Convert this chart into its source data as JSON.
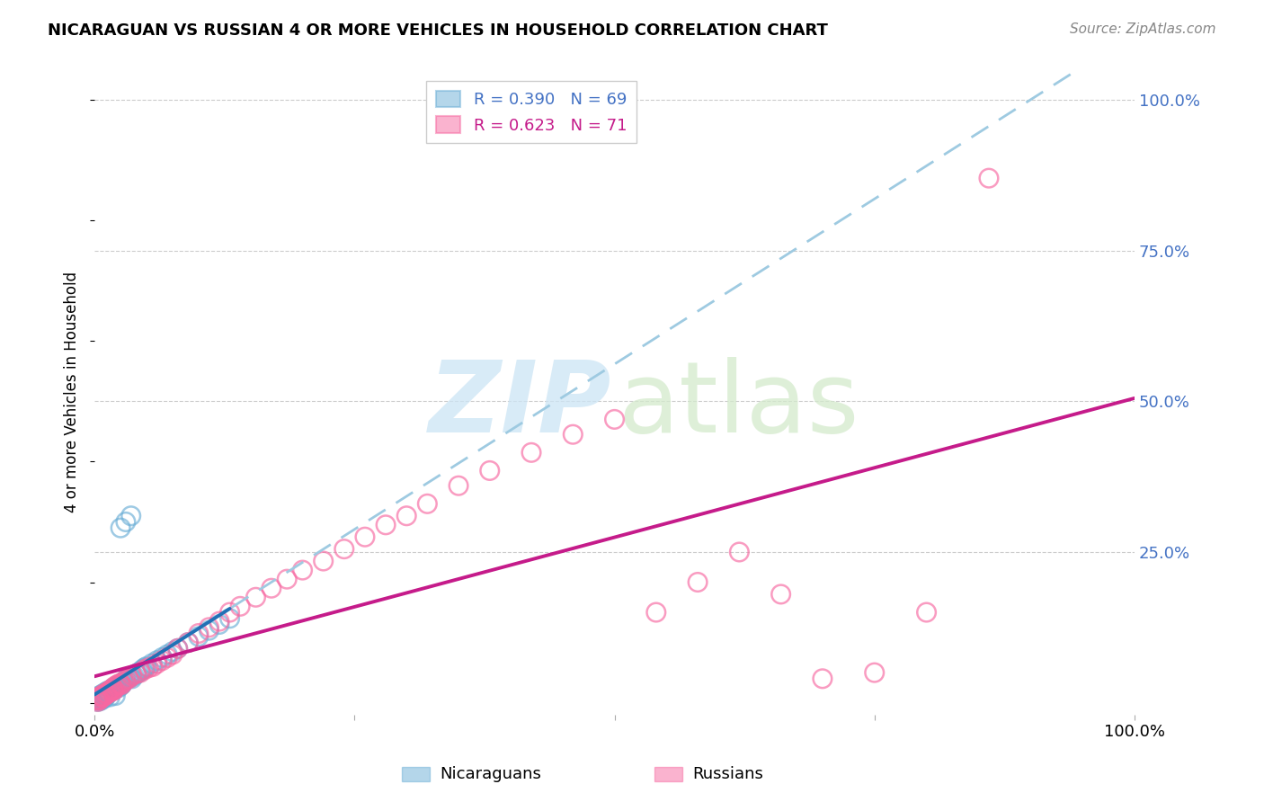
{
  "title": "NICARAGUAN VS RUSSIAN 4 OR MORE VEHICLES IN HOUSEHOLD CORRELATION CHART",
  "source": "Source: ZipAtlas.com",
  "ylabel": "4 or more Vehicles in Household",
  "ytick_labels": [
    "100.0%",
    "75.0%",
    "50.0%",
    "25.0%"
  ],
  "ytick_positions": [
    1.0,
    0.75,
    0.5,
    0.25
  ],
  "nicaraguan_color": "#6baed6",
  "russian_color": "#f768a1",
  "nicaraguan_line_color": "#2171b5",
  "russian_line_color": "#c51b8a",
  "nicaraguan_dash_color": "#9ecae1",
  "background_color": "#ffffff",
  "xlim": [
    0.0,
    1.0
  ],
  "ylim": [
    -0.02,
    1.05
  ],
  "nicaraguan_R": 0.39,
  "nicaraguan_N": 69,
  "russian_R": 0.623,
  "russian_N": 71,
  "nicaraguan_x": [
    0.002,
    0.003,
    0.003,
    0.004,
    0.004,
    0.005,
    0.005,
    0.006,
    0.006,
    0.007,
    0.007,
    0.008,
    0.008,
    0.009,
    0.009,
    0.01,
    0.01,
    0.011,
    0.011,
    0.012,
    0.012,
    0.013,
    0.013,
    0.014,
    0.015,
    0.016,
    0.017,
    0.018,
    0.019,
    0.02,
    0.021,
    0.022,
    0.023,
    0.024,
    0.025,
    0.026,
    0.027,
    0.028,
    0.03,
    0.032,
    0.034,
    0.036,
    0.038,
    0.04,
    0.042,
    0.044,
    0.046,
    0.048,
    0.05,
    0.055,
    0.06,
    0.065,
    0.07,
    0.075,
    0.08,
    0.09,
    0.1,
    0.11,
    0.12,
    0.13,
    0.003,
    0.005,
    0.007,
    0.01,
    0.015,
    0.02,
    0.025,
    0.03,
    0.035
  ],
  "nicaraguan_y": [
    0.005,
    0.005,
    0.008,
    0.005,
    0.01,
    0.008,
    0.012,
    0.005,
    0.01,
    0.008,
    0.012,
    0.008,
    0.015,
    0.01,
    0.015,
    0.01,
    0.015,
    0.012,
    0.018,
    0.015,
    0.018,
    0.015,
    0.02,
    0.018,
    0.02,
    0.022,
    0.02,
    0.025,
    0.022,
    0.025,
    0.025,
    0.028,
    0.025,
    0.03,
    0.028,
    0.03,
    0.032,
    0.035,
    0.038,
    0.04,
    0.042,
    0.04,
    0.045,
    0.048,
    0.05,
    0.052,
    0.055,
    0.058,
    0.06,
    0.065,
    0.07,
    0.075,
    0.08,
    0.085,
    0.09,
    0.1,
    0.11,
    0.12,
    0.13,
    0.14,
    0.002,
    0.003,
    0.005,
    0.008,
    0.01,
    0.012,
    0.29,
    0.3,
    0.31
  ],
  "russian_x": [
    0.002,
    0.003,
    0.004,
    0.005,
    0.006,
    0.007,
    0.008,
    0.009,
    0.01,
    0.011,
    0.012,
    0.013,
    0.014,
    0.015,
    0.016,
    0.017,
    0.018,
    0.019,
    0.02,
    0.022,
    0.024,
    0.026,
    0.028,
    0.03,
    0.033,
    0.036,
    0.04,
    0.044,
    0.048,
    0.052,
    0.056,
    0.06,
    0.065,
    0.07,
    0.075,
    0.08,
    0.09,
    0.1,
    0.11,
    0.12,
    0.13,
    0.14,
    0.155,
    0.17,
    0.185,
    0.2,
    0.22,
    0.24,
    0.26,
    0.28,
    0.3,
    0.32,
    0.35,
    0.38,
    0.42,
    0.46,
    0.5,
    0.54,
    0.58,
    0.62,
    0.66,
    0.7,
    0.75,
    0.8,
    0.003,
    0.005,
    0.008,
    0.012,
    0.018,
    0.025,
    0.86
  ],
  "russian_y": [
    0.005,
    0.005,
    0.008,
    0.01,
    0.01,
    0.012,
    0.01,
    0.015,
    0.012,
    0.015,
    0.015,
    0.018,
    0.02,
    0.018,
    0.022,
    0.02,
    0.025,
    0.022,
    0.028,
    0.03,
    0.032,
    0.03,
    0.035,
    0.038,
    0.04,
    0.045,
    0.048,
    0.05,
    0.055,
    0.058,
    0.06,
    0.065,
    0.07,
    0.075,
    0.08,
    0.09,
    0.1,
    0.115,
    0.125,
    0.135,
    0.15,
    0.16,
    0.175,
    0.19,
    0.205,
    0.22,
    0.235,
    0.255,
    0.275,
    0.295,
    0.31,
    0.33,
    0.36,
    0.385,
    0.415,
    0.445,
    0.47,
    0.15,
    0.2,
    0.25,
    0.18,
    0.04,
    0.05,
    0.15,
    0.002,
    0.005,
    0.01,
    0.015,
    0.02,
    0.03,
    0.87
  ]
}
